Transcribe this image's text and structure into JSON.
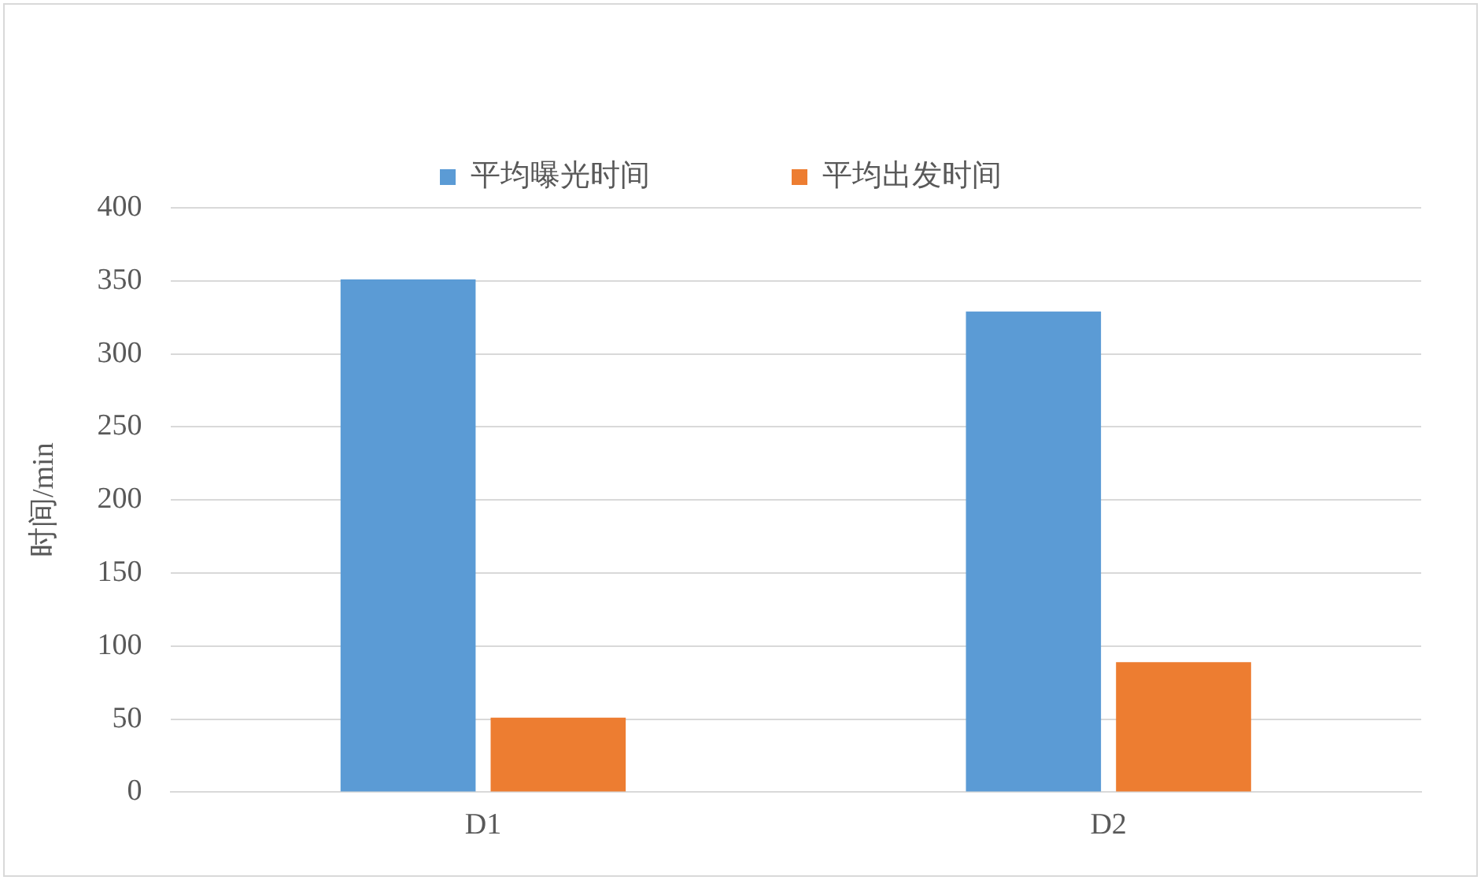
{
  "chart_data": {
    "type": "bar",
    "ylabel": "时间/min",
    "categories": [
      "D1",
      "D2"
    ],
    "series": [
      {
        "name": "平均曝光时间",
        "color": "#5b9bd5",
        "values": [
          351,
          329
        ]
      },
      {
        "name": "平均出发时间",
        "color": "#ed7d31",
        "values": [
          51,
          89
        ]
      }
    ],
    "ylim": [
      0,
      400
    ],
    "yticks": [
      0,
      50,
      100,
      150,
      200,
      250,
      300,
      350,
      400
    ],
    "grid": "y",
    "legend": "top"
  }
}
